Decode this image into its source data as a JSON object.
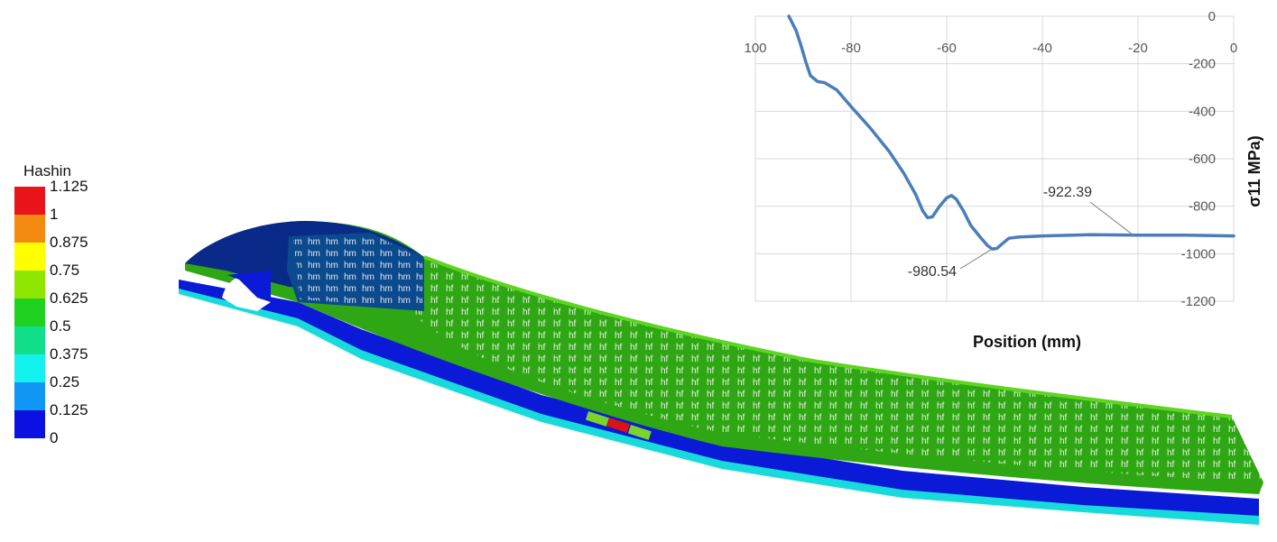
{
  "colorbar": {
    "title": "Hashin",
    "labels": [
      "1.125",
      "1",
      "0.875",
      "0.75",
      "0.625",
      "0.5",
      "0.375",
      "0.25",
      "0.125",
      "0"
    ],
    "colors": [
      "#e8141a",
      "#f58a10",
      "#ffff00",
      "#8fe600",
      "#1fd21f",
      "#11df8a",
      "#14f2f0",
      "#1096f5",
      "#0a10e0"
    ]
  },
  "model": {
    "region_labels": [
      "hf",
      "hm"
    ],
    "colors": {
      "tread": "#2fa614",
      "top_edge": "#5cd61e",
      "hm_zone": "#0b4a8c",
      "dark_zone": "#0a2a8a",
      "outer_ply": "#0a1ad6",
      "cyan_ply": "#19dada",
      "green_strip": "#7ad42a",
      "hotspot": "#d81414"
    }
  },
  "chart_data": {
    "type": "line",
    "xlabel": "Position (mm)",
    "ylabel": "σ11 MPa)",
    "xlim": [
      -100,
      0
    ],
    "ylim": [
      -1200,
      0
    ],
    "x_ticks": [
      "100",
      "-80",
      "-60",
      "-40",
      "-20",
      "0"
    ],
    "y_ticks": [
      "0",
      "-200",
      "-400",
      "-600",
      "-800",
      "-1000",
      "-1200"
    ],
    "grid": true,
    "line_color": "#4a7ebb",
    "series": [
      {
        "x": [
          -93,
          -91.5,
          -90.5,
          -89.5,
          -88.5,
          -87,
          -85.5,
          -83,
          -80,
          -76,
          -72,
          -69,
          -66.5,
          -65,
          -64,
          -63,
          -61.5,
          -60,
          -59,
          -58,
          -56.5,
          -55,
          -53,
          -51.5,
          -50.5,
          -49.5,
          -48.5,
          -47,
          -45,
          -40,
          -30,
          -20,
          -10,
          0
        ],
        "values": [
          0,
          -60,
          -120,
          -190,
          -250,
          -275,
          -280,
          -310,
          -380,
          -470,
          -570,
          -660,
          -750,
          -820,
          -848,
          -845,
          -800,
          -765,
          -755,
          -770,
          -820,
          -880,
          -930,
          -965,
          -980,
          -978,
          -960,
          -935,
          -930,
          -925,
          -920,
          -922,
          -922,
          -925
        ]
      }
    ],
    "annotations": [
      {
        "text": "-922.39",
        "x": -21,
        "y": -922
      },
      {
        "text": "-980.54",
        "x": -50.5,
        "y": -980
      }
    ]
  }
}
